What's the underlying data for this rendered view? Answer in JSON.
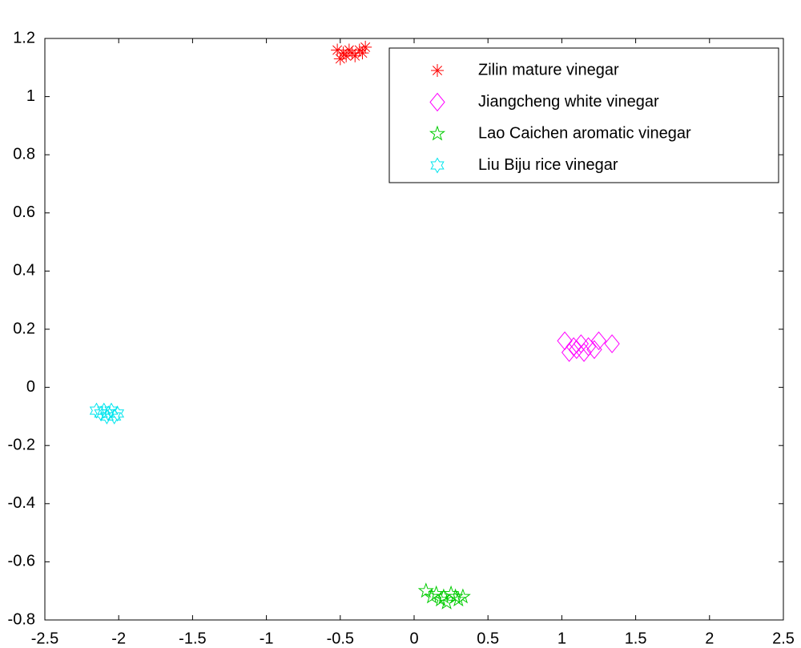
{
  "chart_data": {
    "type": "scatter",
    "xlim": [
      -2.5,
      2.5
    ],
    "ylim": [
      -0.8,
      1.2
    ],
    "xticks": [
      -2.5,
      -2,
      -1.5,
      -1,
      -0.5,
      0,
      0.5,
      1,
      1.5,
      2,
      2.5
    ],
    "yticks": [
      -0.8,
      -0.6,
      -0.4,
      -0.2,
      0,
      0.2,
      0.4,
      0.6,
      0.8,
      1,
      1.2
    ],
    "grid": false,
    "legend": "upper right",
    "series": [
      {
        "name": "Zilin mature vinegar",
        "color": "#ff0000",
        "marker": "asterisk",
        "x": [
          -0.52,
          -0.5,
          -0.48,
          -0.46,
          -0.44,
          -0.42,
          -0.4,
          -0.37,
          -0.35,
          -0.33
        ],
        "values": [
          1.16,
          1.13,
          1.15,
          1.14,
          1.16,
          1.15,
          1.14,
          1.16,
          1.15,
          1.17
        ]
      },
      {
        "name": "Jiangcheng white vinegar",
        "color": "#ff00ff",
        "marker": "diamond",
        "x": [
          1.02,
          1.05,
          1.08,
          1.1,
          1.13,
          1.15,
          1.18,
          1.22,
          1.25,
          1.34
        ],
        "values": [
          0.16,
          0.12,
          0.14,
          0.13,
          0.15,
          0.12,
          0.14,
          0.13,
          0.16,
          0.15
        ]
      },
      {
        "name": "Lao Caichen aromatic vinegar",
        "color": "#00cc00",
        "marker": "pentagram",
        "x": [
          0.08,
          0.12,
          0.15,
          0.18,
          0.2,
          0.22,
          0.25,
          0.28,
          0.3,
          0.33
        ],
        "values": [
          -0.7,
          -0.72,
          -0.71,
          -0.73,
          -0.72,
          -0.74,
          -0.71,
          -0.72,
          -0.73,
          -0.72
        ]
      },
      {
        "name": "Liu Biju rice vinegar",
        "color": "#00e5ee",
        "marker": "hexagram",
        "x": [
          -2.15,
          -2.12,
          -2.1,
          -2.08,
          -2.07,
          -2.05,
          -2.03,
          -2.01
        ],
        "values": [
          -0.08,
          -0.09,
          -0.08,
          -0.1,
          -0.09,
          -0.08,
          -0.1,
          -0.09
        ]
      }
    ]
  }
}
